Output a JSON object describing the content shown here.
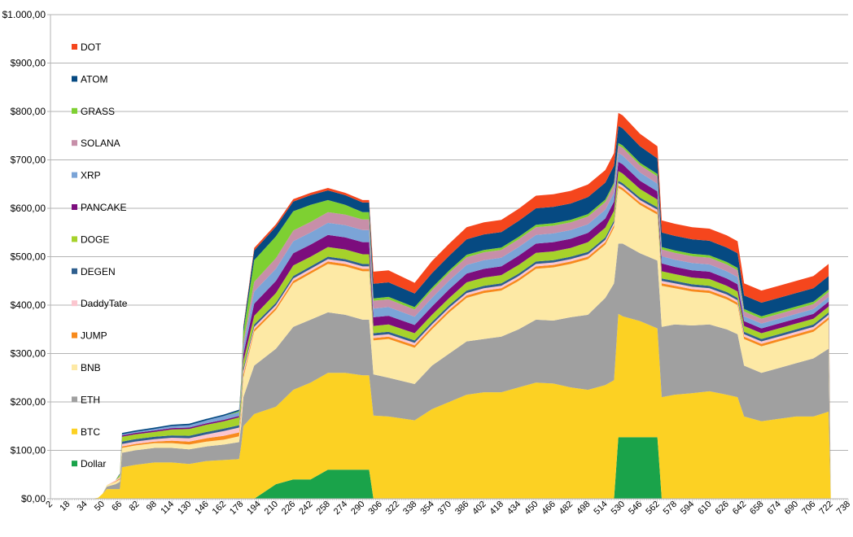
{
  "chart_data": {
    "type": "area",
    "stacked": true,
    "title": "",
    "xlabel": "",
    "ylabel": "",
    "ylim": [
      0,
      1000
    ],
    "xlim": [
      2,
      738
    ],
    "grid": true,
    "legend_position": "left",
    "y_ticks": [
      {
        "value": 0,
        "label": "$0,00"
      },
      {
        "value": 100,
        "label": "$100,00"
      },
      {
        "value": 200,
        "label": "$200,00"
      },
      {
        "value": 300,
        "label": "$300,00"
      },
      {
        "value": 400,
        "label": "$400,00"
      },
      {
        "value": 500,
        "label": "$500,00"
      },
      {
        "value": 600,
        "label": "$600,00"
      },
      {
        "value": 700,
        "label": "$700,00"
      },
      {
        "value": 800,
        "label": "$800,00"
      },
      {
        "value": 900,
        "label": "$900,00"
      },
      {
        "value": 1000,
        "label": "$1.000,00"
      }
    ],
    "x_ticks": [
      "2",
      "18",
      "34",
      "50",
      "66",
      "82",
      "98",
      "114",
      "130",
      "146",
      "162",
      "178",
      "194",
      "210",
      "226",
      "242",
      "258",
      "274",
      "290",
      "306",
      "322",
      "338",
      "354",
      "370",
      "386",
      "402",
      "418",
      "434",
      "450",
      "466",
      "482",
      "498",
      "514",
      "530",
      "546",
      "562",
      "578",
      "594",
      "610",
      "626",
      "642",
      "658",
      "674",
      "690",
      "706",
      "722",
      "738"
    ],
    "x": [
      2,
      40,
      46,
      50,
      54,
      62,
      66,
      68,
      80,
      98,
      114,
      130,
      146,
      162,
      176,
      178,
      180,
      190,
      210,
      226,
      242,
      258,
      274,
      290,
      296,
      300,
      314,
      338,
      354,
      370,
      386,
      402,
      418,
      434,
      450,
      466,
      482,
      498,
      514,
      522,
      526,
      530,
      546,
      562,
      566,
      578,
      594,
      610,
      626,
      636,
      642,
      658,
      674,
      690,
      706,
      720,
      722
    ],
    "series": [
      {
        "name": "Dollar",
        "color": "#1aa34a",
        "values": [
          0,
          0,
          0,
          0,
          0,
          0,
          0,
          0,
          0,
          0,
          0,
          0,
          0,
          0,
          0,
          0,
          0,
          0,
          30,
          40,
          40,
          60,
          60,
          60,
          60,
          0,
          0,
          0,
          0,
          0,
          0,
          0,
          0,
          0,
          0,
          0,
          0,
          0,
          0,
          0,
          127,
          127,
          127,
          127,
          0,
          0,
          0,
          0,
          0,
          0,
          0,
          0,
          0,
          0,
          0,
          0,
          0
        ]
      },
      {
        "name": "BTC",
        "color": "#fcd123",
        "values": [
          0,
          0,
          2,
          10,
          20,
          20,
          20,
          65,
          70,
          75,
          75,
          72,
          78,
          80,
          82,
          110,
          150,
          175,
          160,
          185,
          200,
          200,
          200,
          195,
          195,
          172,
          170,
          162,
          185,
          200,
          215,
          220,
          220,
          230,
          240,
          238,
          230,
          225,
          235,
          245,
          255,
          250,
          240,
          225,
          210,
          215,
          218,
          222,
          215,
          210,
          170,
          160,
          165,
          170,
          170,
          180,
          0
        ]
      },
      {
        "name": "ETH",
        "color": "#a0a0a0",
        "values": [
          0,
          0,
          0,
          0,
          5,
          10,
          15,
          30,
          30,
          30,
          30,
          30,
          30,
          32,
          35,
          40,
          60,
          100,
          120,
          130,
          130,
          125,
          120,
          115,
          115,
          85,
          80,
          75,
          90,
          100,
          110,
          110,
          115,
          120,
          130,
          130,
          145,
          155,
          180,
          200,
          145,
          150,
          140,
          140,
          145,
          145,
          140,
          138,
          135,
          130,
          105,
          100,
          105,
          110,
          120,
          130,
          0
        ]
      },
      {
        "name": "BNB",
        "color": "#fde9a5",
        "values": [
          0,
          0,
          0,
          0,
          3,
          5,
          5,
          10,
          10,
          10,
          10,
          10,
          10,
          10,
          12,
          20,
          40,
          70,
          80,
          90,
          95,
          100,
          100,
          100,
          100,
          70,
          80,
          75,
          75,
          85,
          90,
          95,
          95,
          100,
          105,
          110,
          110,
          115,
          110,
          115,
          115,
          110,
          100,
          95,
          85,
          75,
          70,
          65,
          62,
          60,
          55,
          55,
          55,
          55,
          55,
          60,
          0
        ]
      },
      {
        "name": "JUMP",
        "color": "#f78a1d",
        "values": [
          0,
          0,
          0,
          0,
          0,
          1,
          2,
          3,
          3,
          3,
          5,
          6,
          7,
          8,
          8,
          8,
          6,
          5,
          5,
          5,
          5,
          5,
          5,
          5,
          5,
          5,
          5,
          5,
          5,
          5,
          5,
          5,
          5,
          5,
          5,
          5,
          5,
          5,
          5,
          5,
          5,
          5,
          5,
          5,
          5,
          5,
          5,
          5,
          5,
          5,
          5,
          5,
          5,
          5,
          5,
          5,
          0
        ]
      },
      {
        "name": "DaddyTate",
        "color": "#fbc6cf",
        "values": [
          0,
          0,
          0,
          0,
          0,
          2,
          3,
          5,
          5,
          5,
          6,
          7,
          8,
          10,
          10,
          10,
          8,
          5,
          5,
          5,
          5,
          5,
          5,
          5,
          5,
          5,
          5,
          5,
          5,
          5,
          5,
          5,
          5,
          5,
          5,
          5,
          5,
          5,
          5,
          5,
          5,
          5,
          5,
          5,
          5,
          5,
          5,
          5,
          5,
          5,
          5,
          5,
          5,
          5,
          5,
          5,
          0
        ]
      },
      {
        "name": "DEGEN",
        "color": "#2f5f8e",
        "values": [
          0,
          0,
          0,
          0,
          0,
          0,
          0,
          5,
          5,
          5,
          5,
          5,
          5,
          5,
          5,
          5,
          5,
          5,
          5,
          5,
          5,
          5,
          5,
          5,
          5,
          5,
          5,
          5,
          5,
          5,
          5,
          5,
          5,
          5,
          5,
          5,
          5,
          5,
          5,
          5,
          5,
          5,
          5,
          5,
          5,
          5,
          5,
          5,
          5,
          5,
          5,
          5,
          5,
          5,
          5,
          5,
          0
        ]
      },
      {
        "name": "DOGE",
        "color": "#a6d22b",
        "values": [
          0,
          0,
          0,
          0,
          0,
          0,
          5,
          10,
          10,
          10,
          12,
          14,
          15,
          15,
          16,
          15,
          15,
          18,
          20,
          22,
          20,
          20,
          20,
          20,
          20,
          15,
          15,
          15,
          15,
          15,
          17,
          17,
          17,
          18,
          18,
          18,
          18,
          20,
          20,
          20,
          20,
          20,
          18,
          16,
          15,
          14,
          14,
          14,
          13,
          13,
          12,
          12,
          12,
          12,
          12,
          12,
          0
        ]
      },
      {
        "name": "PANCAKE",
        "color": "#7c0d7d",
        "values": [
          0,
          0,
          0,
          0,
          0,
          0,
          0,
          3,
          3,
          3,
          3,
          3,
          3,
          3,
          3,
          5,
          15,
          25,
          25,
          25,
          25,
          25,
          25,
          25,
          25,
          18,
          18,
          17,
          17,
          18,
          18,
          18,
          18,
          19,
          19,
          19,
          19,
          19,
          19,
          19,
          19,
          19,
          17,
          17,
          16,
          15,
          15,
          15,
          15,
          15,
          10,
          10,
          10,
          10,
          10,
          10,
          0
        ]
      },
      {
        "name": "XRP",
        "color": "#7ba4d7",
        "values": [
          0,
          0,
          0,
          0,
          0,
          0,
          0,
          2,
          2,
          3,
          4,
          5,
          6,
          8,
          8,
          10,
          15,
          25,
          25,
          25,
          25,
          25,
          25,
          25,
          25,
          18,
          18,
          17,
          18,
          18,
          18,
          18,
          18,
          18,
          18,
          18,
          18,
          18,
          18,
          18,
          18,
          18,
          17,
          16,
          15,
          15,
          15,
          15,
          15,
          15,
          10,
          10,
          10,
          10,
          10,
          10,
          0
        ]
      },
      {
        "name": "SOLANA",
        "color": "#c78fa9",
        "values": [
          0,
          0,
          0,
          0,
          0,
          0,
          0,
          0,
          0,
          0,
          0,
          0,
          0,
          0,
          0,
          5,
          10,
          20,
          22,
          22,
          22,
          22,
          22,
          22,
          22,
          16,
          16,
          15,
          16,
          16,
          16,
          16,
          16,
          16,
          16,
          16,
          16,
          16,
          16,
          16,
          16,
          16,
          15,
          15,
          14,
          14,
          14,
          14,
          14,
          14,
          10,
          10,
          10,
          10,
          10,
          10,
          0
        ]
      },
      {
        "name": "GRASS",
        "color": "#7ed032",
        "values": [
          0,
          0,
          0,
          0,
          0,
          0,
          0,
          0,
          0,
          0,
          0,
          0,
          0,
          0,
          2,
          10,
          20,
          45,
          45,
          40,
          35,
          25,
          20,
          15,
          15,
          5,
          5,
          5,
          5,
          5,
          5,
          5,
          5,
          5,
          5,
          5,
          5,
          5,
          5,
          5,
          5,
          5,
          5,
          5,
          5,
          5,
          5,
          5,
          5,
          5,
          5,
          5,
          5,
          5,
          5,
          5,
          0
        ]
      },
      {
        "name": "ATOM",
        "color": "#064a82",
        "values": [
          0,
          0,
          0,
          0,
          0,
          0,
          2,
          3,
          3,
          3,
          3,
          3,
          3,
          3,
          3,
          5,
          10,
          20,
          20,
          20,
          20,
          20,
          20,
          20,
          20,
          30,
          30,
          28,
          30,
          30,
          32,
          32,
          32,
          33,
          34,
          34,
          34,
          35,
          35,
          35,
          35,
          35,
          34,
          32,
          30,
          30,
          30,
          30,
          30,
          30,
          28,
          28,
          28,
          28,
          28,
          28,
          0
        ]
      },
      {
        "name": "DOT",
        "color": "#f5461d",
        "values": [
          0,
          0,
          0,
          0,
          0,
          0,
          0,
          0,
          0,
          0,
          0,
          0,
          0,
          0,
          0,
          2,
          3,
          5,
          5,
          5,
          5,
          5,
          5,
          5,
          5,
          25,
          25,
          22,
          25,
          25,
          25,
          25,
          25,
          25,
          26,
          26,
          26,
          26,
          26,
          26,
          27,
          27,
          26,
          25,
          25,
          25,
          25,
          25,
          25,
          25,
          25,
          25,
          25,
          25,
          25,
          25,
          0
        ]
      }
    ]
  }
}
